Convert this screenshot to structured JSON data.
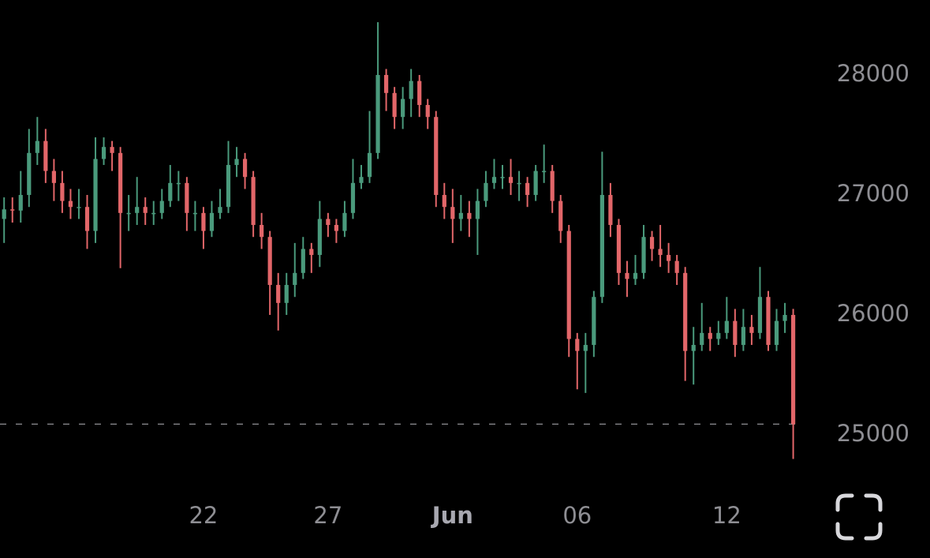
{
  "chart_data": {
    "type": "candlestick",
    "up_color": "#4a9a7c",
    "down_color": "#e26669",
    "open": [
      26800,
      26880,
      26870,
      27000,
      27350,
      27450,
      27200,
      27100,
      26950,
      26900,
      26900,
      26700,
      27300,
      27400,
      27350,
      26850,
      26850,
      26900,
      26850,
      26850,
      26950,
      27100,
      27100,
      26850,
      26850,
      26700,
      26850,
      26900,
      27250,
      27300,
      27150,
      26750,
      26650,
      26250,
      26100,
      26250,
      26350,
      26550,
      26500,
      26800,
      26750,
      26700,
      26850,
      27100,
      27150,
      27350,
      28000,
      27850,
      27650,
      27800,
      27950,
      27750,
      27650,
      27000,
      26900,
      26800,
      26850,
      26800,
      26950,
      27100,
      27150,
      27150,
      27100,
      27100,
      27000,
      27200,
      27200,
      26950,
      26700,
      25800,
      25700,
      25750,
      26150,
      27000,
      26750,
      26350,
      26300,
      26350,
      26650,
      26550,
      26500,
      26450,
      26350,
      25700,
      25750,
      25850,
      25800,
      25850,
      25950,
      25750,
      25900,
      25850,
      26150,
      25750,
      25950,
      26000
    ],
    "high": [
      26980,
      26980,
      27200,
      27550,
      27650,
      27550,
      27300,
      27200,
      27050,
      27050,
      27000,
      27480,
      27480,
      27450,
      27400,
      27000,
      27150,
      26980,
      26950,
      27050,
      27250,
      27200,
      27150,
      26950,
      26900,
      26950,
      27050,
      27450,
      27400,
      27350,
      27200,
      26850,
      26700,
      26350,
      26350,
      26600,
      26650,
      26600,
      26950,
      26850,
      26800,
      26950,
      27300,
      27250,
      27700,
      28440,
      28050,
      27900,
      27900,
      28050,
      28000,
      27800,
      27700,
      27100,
      27050,
      27000,
      26950,
      27050,
      27200,
      27300,
      27250,
      27300,
      27200,
      27150,
      27250,
      27420,
      27250,
      27000,
      26750,
      25850,
      25850,
      26200,
      27360,
      27100,
      26800,
      26450,
      26500,
      26750,
      26700,
      26750,
      26600,
      26500,
      26400,
      25900,
      26100,
      25900,
      25950,
      26150,
      26050,
      26050,
      26000,
      26400,
      26200,
      26050,
      26100,
      26050
    ],
    "low": [
      26600,
      26770,
      26770,
      26900,
      27250,
      27100,
      26950,
      26850,
      26800,
      26800,
      26550,
      26600,
      27250,
      27200,
      26390,
      26700,
      26750,
      26750,
      26750,
      26800,
      26900,
      26950,
      26700,
      26700,
      26550,
      26650,
      26800,
      26850,
      27150,
      27050,
      26650,
      26550,
      26000,
      25870,
      26000,
      26150,
      26300,
      26350,
      26400,
      26650,
      26600,
      26650,
      26800,
      27050,
      27100,
      27300,
      27700,
      27550,
      27550,
      27650,
      27650,
      27550,
      26900,
      26800,
      26600,
      26700,
      26650,
      26500,
      26900,
      27050,
      27050,
      27000,
      26950,
      26900,
      26950,
      27100,
      26850,
      26600,
      25650,
      25380,
      25350,
      25650,
      26100,
      26650,
      26250,
      26150,
      26250,
      26300,
      26450,
      26400,
      26350,
      26250,
      25450,
      25420,
      25700,
      25700,
      25750,
      25800,
      25650,
      25700,
      25750,
      25800,
      25700,
      25700,
      25850,
      24800
    ],
    "close": [
      26880,
      26870,
      27000,
      27350,
      27450,
      27200,
      27100,
      26950,
      26900,
      26900,
      26700,
      27300,
      27400,
      27350,
      26850,
      26850,
      26900,
      26850,
      26850,
      26950,
      27100,
      27100,
      26850,
      26850,
      26700,
      26850,
      26900,
      27250,
      27300,
      27150,
      26750,
      26650,
      26250,
      26100,
      26250,
      26350,
      26550,
      26500,
      26800,
      26750,
      26700,
      26850,
      27100,
      27150,
      27350,
      28000,
      27850,
      27650,
      27800,
      27950,
      27750,
      27650,
      27000,
      26900,
      26800,
      26850,
      26800,
      26950,
      27100,
      27150,
      27150,
      27100,
      27100,
      27000,
      27200,
      27200,
      26950,
      26700,
      25800,
      25700,
      25750,
      26150,
      27000,
      26750,
      26350,
      26300,
      26350,
      26650,
      26550,
      26500,
      26450,
      26350,
      25700,
      25750,
      25850,
      25800,
      25850,
      25950,
      25750,
      25900,
      25850,
      26150,
      25750,
      25950,
      26000,
      25090
    ],
    "last_price": 25090,
    "xlim": [
      -0.494,
      97.32
    ],
    "xticks": [
      {
        "value": 24,
        "label": "22"
      },
      {
        "value": 39,
        "label": "27"
      },
      {
        "value": 54,
        "label": "Jun"
      },
      {
        "value": 69,
        "label": "06"
      },
      {
        "value": 87,
        "label": "12"
      }
    ],
    "ylim": [
      24678,
      28625
    ],
    "yticks": [
      25000,
      26000,
      27000,
      28000
    ]
  }
}
